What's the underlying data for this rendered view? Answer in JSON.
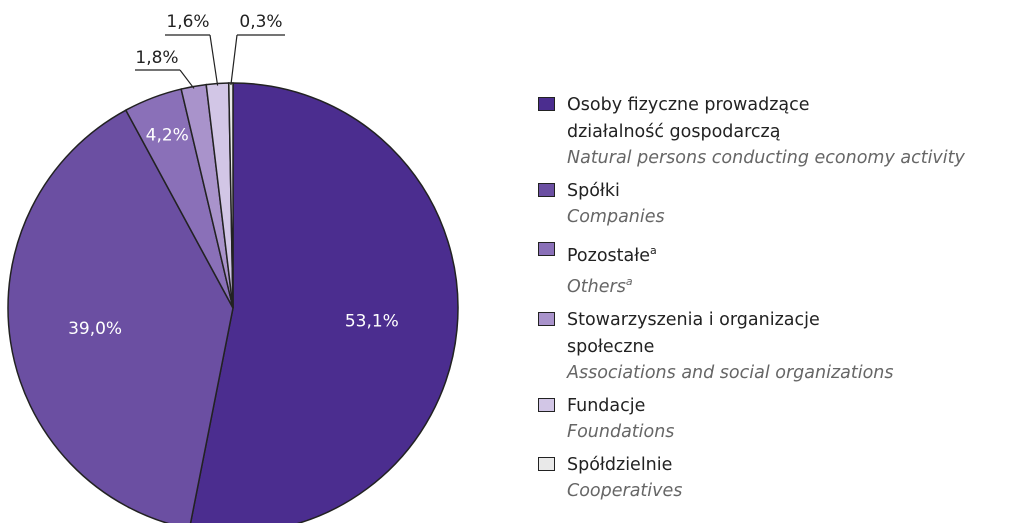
{
  "chart_data": {
    "type": "pie",
    "categories": [
      "Osoby fizyczne prowadzące działalność gospodarczą",
      "Spółki",
      "Pozostałe",
      "Stowarzyszenia i organizacje społeczne",
      "Fundacje",
      "Spółdzielnie"
    ],
    "categories_en": [
      "Natural persons conducting economy activity",
      "Companies",
      "Others",
      "Associations and social organizations",
      "Foundations",
      "Cooperatives"
    ],
    "notes": [
      null,
      null,
      "a",
      null,
      null,
      null
    ],
    "values": [
      53.1,
      39.0,
      4.2,
      1.8,
      1.6,
      0.3
    ],
    "value_labels": [
      "53,1%",
      "39,0%",
      "4,2%",
      "1,8%",
      "1,6%",
      "0,3%"
    ],
    "colors": [
      "#4b2d8f",
      "#6b4fa2",
      "#8a70b8",
      "#a993cb",
      "#d2c6e6",
      "#e9e9e9"
    ]
  }
}
